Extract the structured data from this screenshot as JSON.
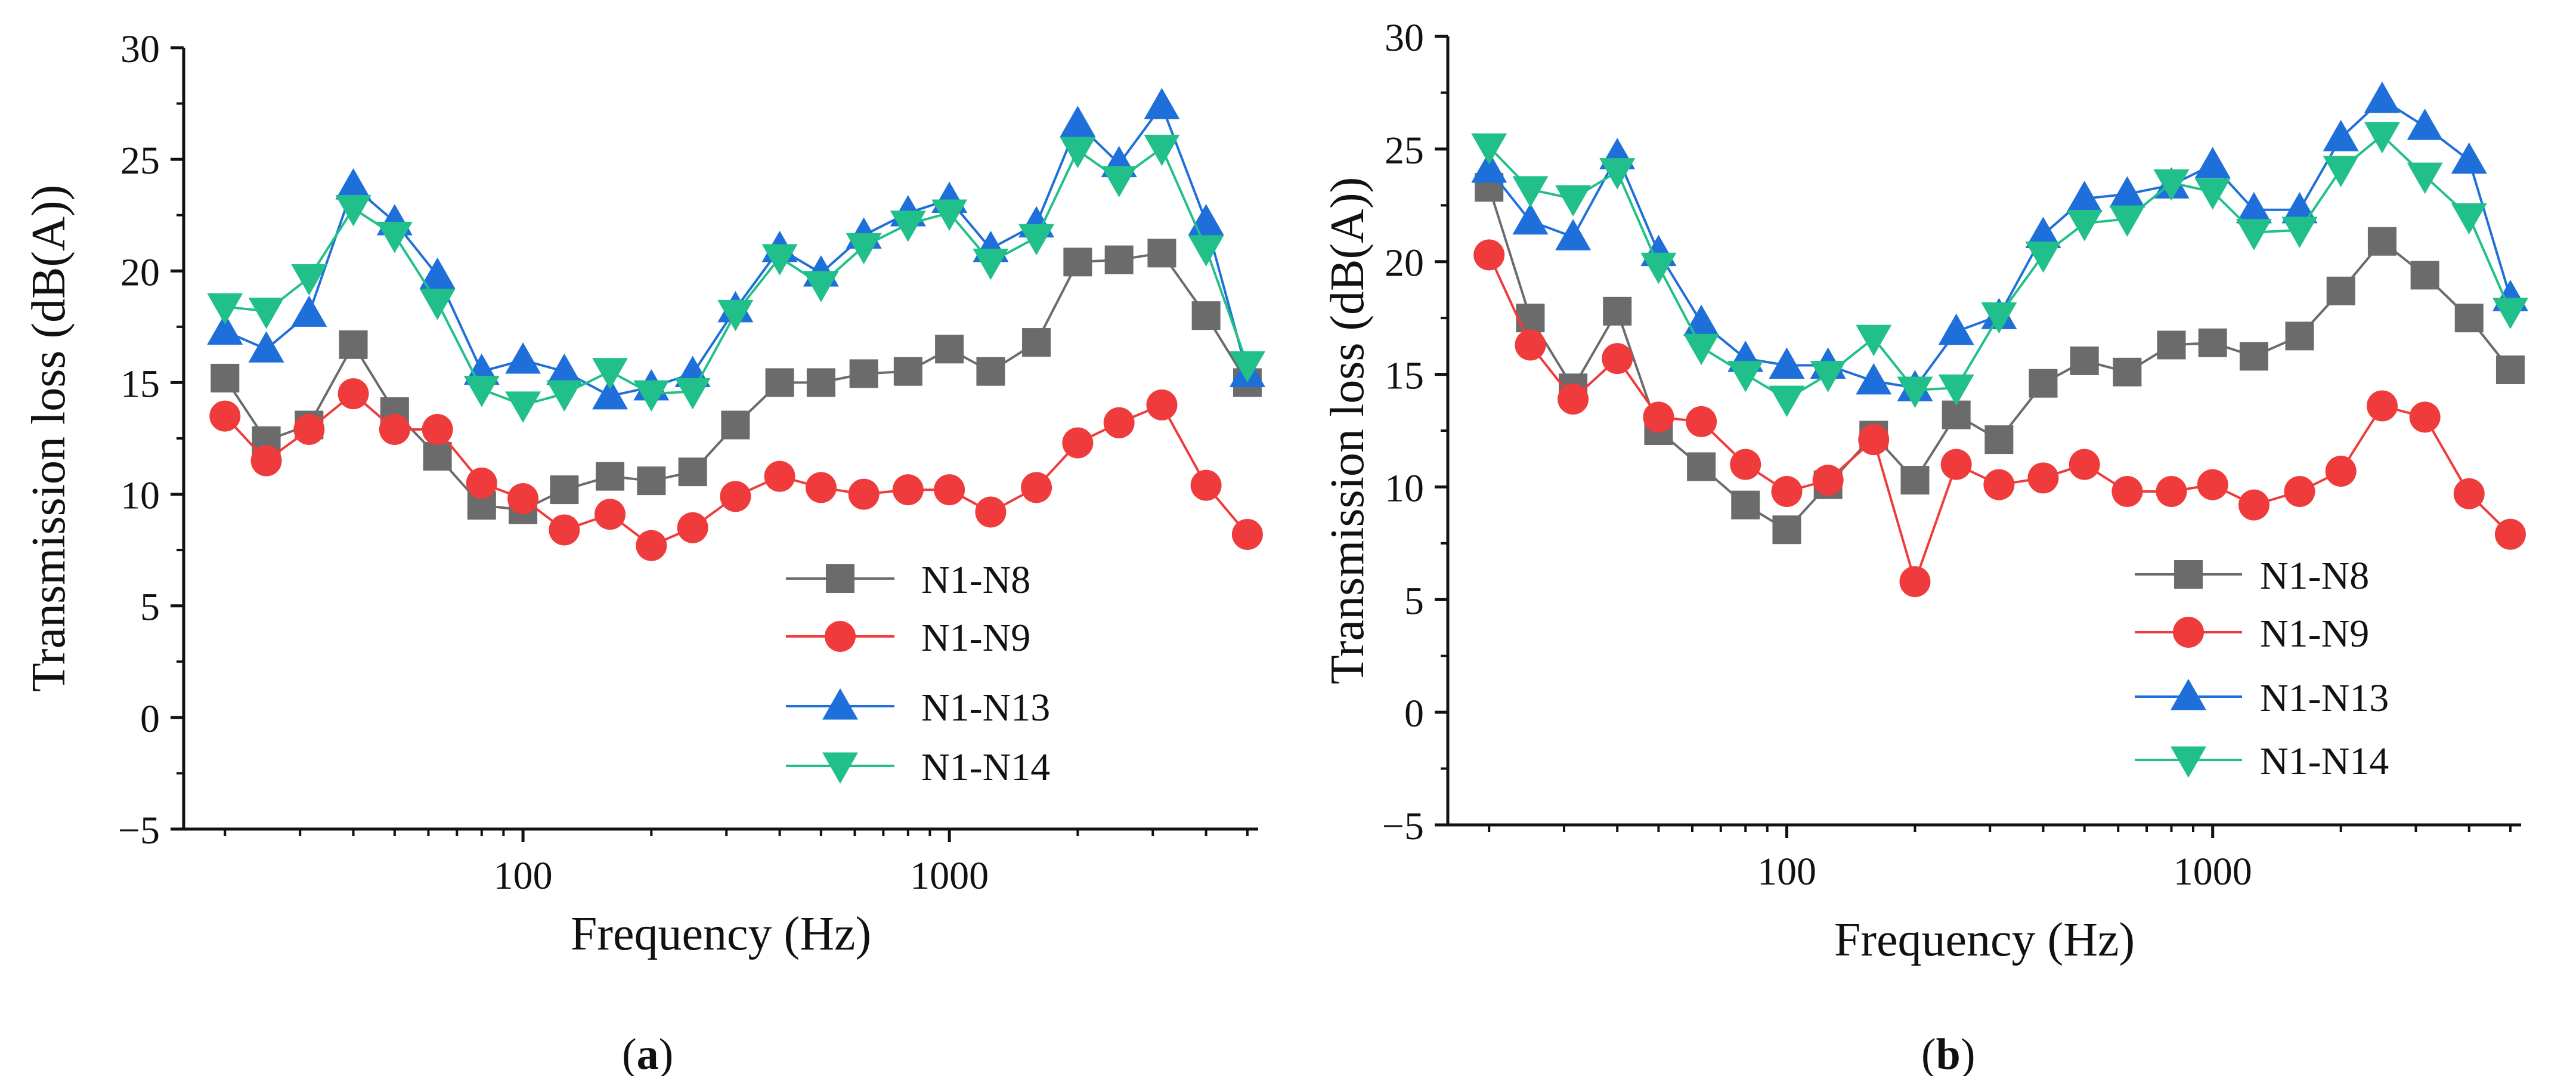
{
  "chart_data": [
    {
      "type": "line",
      "panel_label": "a",
      "title": "",
      "xlabel": "Frequency (Hz)",
      "ylabel": "Transmission loss (dB(A))",
      "xscale": "log",
      "xlim": [
        16,
        5300
      ],
      "ylim": [
        -5,
        30
      ],
      "grid": false,
      "legend_position": "lower-right",
      "x_ticks": [
        100,
        1000
      ],
      "x_tick_labels": [
        "100",
        "1000"
      ],
      "y_ticks": [
        -5,
        0,
        5,
        10,
        15,
        20,
        25,
        30
      ],
      "y_tick_labels": [
        "−5",
        "0",
        "5",
        "10",
        "15",
        "20",
        "25",
        "30"
      ],
      "x": [
        20,
        25,
        31.5,
        40,
        50,
        63,
        80,
        100,
        125,
        160,
        200,
        250,
        315,
        400,
        500,
        630,
        800,
        1000,
        1250,
        1600,
        2000,
        2500,
        3150,
        4000,
        5000
      ],
      "series": [
        {
          "name": "N1-N8",
          "color": "#6b6b6b",
          "marker": "square",
          "values": [
            15.2,
            12.4,
            13.1,
            16.7,
            13.7,
            11.7,
            9.5,
            9.3,
            10.2,
            10.8,
            10.6,
            11.0,
            13.1,
            15.0,
            15.0,
            15.4,
            15.5,
            16.5,
            15.5,
            16.8,
            20.4,
            20.5,
            20.8,
            18.0,
            15.0
          ]
        },
        {
          "name": "N1-N9",
          "color": "#ef3b3b",
          "marker": "circle",
          "values": [
            13.5,
            11.5,
            12.9,
            14.5,
            12.9,
            12.9,
            10.5,
            9.8,
            8.4,
            9.1,
            7.7,
            8.5,
            9.9,
            10.8,
            10.3,
            10.0,
            10.2,
            10.2,
            9.2,
            10.3,
            12.3,
            13.2,
            14.0,
            10.4,
            8.2
          ]
        },
        {
          "name": "N1-N13",
          "color": "#1e6fd9",
          "marker": "triangle-up",
          "values": [
            17.3,
            16.5,
            18.1,
            23.8,
            22.2,
            19.8,
            15.5,
            16.0,
            15.5,
            14.4,
            14.8,
            15.4,
            18.3,
            21.0,
            19.9,
            21.6,
            22.6,
            23.2,
            21.0,
            22.1,
            26.6,
            24.8,
            27.4,
            22.2,
            15.4
          ]
        },
        {
          "name": "N1-N14",
          "color": "#21bf89",
          "marker": "triangle-down",
          "values": [
            18.4,
            18.2,
            19.7,
            22.8,
            21.6,
            18.6,
            14.7,
            14.0,
            14.5,
            15.5,
            14.5,
            14.6,
            18.1,
            20.6,
            19.4,
            21.1,
            22.1,
            22.6,
            20.4,
            21.5,
            25.4,
            24.1,
            25.5,
            21.0,
            15.8
          ]
        }
      ]
    },
    {
      "type": "line",
      "panel_label": "b",
      "title": "",
      "xlabel": "Frequency (Hz)",
      "ylabel": "Transmission loss (dB(A))",
      "xscale": "log",
      "xlim": [
        16,
        5300
      ],
      "ylim": [
        -5,
        30
      ],
      "grid": false,
      "legend_position": "lower-right",
      "x_ticks": [
        100,
        1000
      ],
      "x_tick_labels": [
        "100",
        "1000"
      ],
      "y_ticks": [
        -5,
        0,
        5,
        10,
        15,
        20,
        25,
        30
      ],
      "y_tick_labels": [
        "−5",
        "0",
        "5",
        "10",
        "15",
        "20",
        "25",
        "30"
      ],
      "x": [
        20,
        25,
        31.5,
        40,
        50,
        63,
        80,
        100,
        125,
        160,
        200,
        250,
        315,
        400,
        500,
        630,
        800,
        1000,
        1250,
        1600,
        2000,
        2500,
        3150,
        4000,
        5000
      ],
      "series": [
        {
          "name": "N1-N8",
          "color": "#6b6b6b",
          "marker": "square",
          "values": [
            23.3,
            17.5,
            14.4,
            17.8,
            12.5,
            10.9,
            9.2,
            8.1,
            10.1,
            12.3,
            10.3,
            13.2,
            12.1,
            14.6,
            15.6,
            15.1,
            16.3,
            16.4,
            15.8,
            16.7,
            18.7,
            20.9,
            19.4,
            17.5,
            15.2
          ]
        },
        {
          "name": "N1-N9",
          "color": "#ef3b3b",
          "marker": "circle",
          "values": [
            20.3,
            16.3,
            13.9,
            15.7,
            13.1,
            12.9,
            11.0,
            9.8,
            10.3,
            12.1,
            5.8,
            11.0,
            10.1,
            10.4,
            11.0,
            9.8,
            9.8,
            10.1,
            9.2,
            9.8,
            10.7,
            13.6,
            13.1,
            9.7,
            7.9
          ]
        },
        {
          "name": "N1-N13",
          "color": "#1e6fd9",
          "marker": "triangle-up",
          "values": [
            24.1,
            21.8,
            21.1,
            24.7,
            20.4,
            17.3,
            15.7,
            15.4,
            15.4,
            14.7,
            14.4,
            16.9,
            17.6,
            21.2,
            22.8,
            23.0,
            23.4,
            24.3,
            22.3,
            22.3,
            25.5,
            27.2,
            26.0,
            24.5,
            18.4
          ]
        },
        {
          "name": "N1-N14",
          "color": "#21bf89",
          "marker": "triangle-down",
          "values": [
            25.1,
            23.2,
            22.8,
            24.0,
            19.8,
            16.2,
            15.0,
            13.9,
            15.0,
            16.6,
            14.3,
            14.4,
            17.6,
            20.3,
            21.7,
            21.9,
            23.5,
            23.1,
            21.3,
            21.4,
            24.1,
            25.6,
            23.8,
            22.0,
            17.8
          ]
        }
      ]
    }
  ]
}
